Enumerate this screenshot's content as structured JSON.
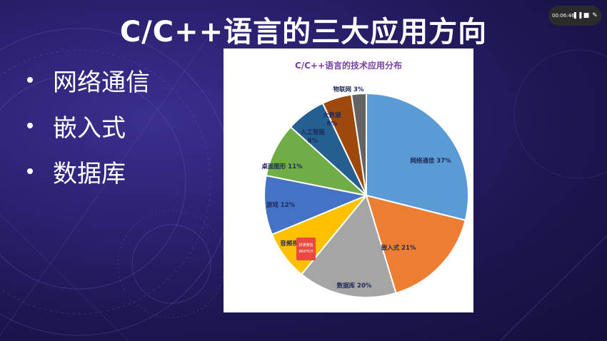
{
  "slide": {
    "title": "C/C++语言的三大应用方向",
    "bullets": [
      "网络通信",
      "嵌入式",
      "数据库"
    ]
  },
  "recorder": {
    "time": "00:06:46",
    "icons": [
      "pause-icon",
      "stop-icon",
      "pen-icon"
    ]
  },
  "watermark": {
    "line1": "拼课微信",
    "line2": "BRXTCH"
  },
  "colors": {
    "title": "#ffffff",
    "chart_title": "#7a3fa6",
    "label": "#1f2a5a"
  },
  "chart_data": {
    "type": "pie",
    "title": "C/C++语言的技术应用分布",
    "categories": [
      "网络通信",
      "嵌入式",
      "数据库",
      "音频视频",
      "游戏",
      "桌面图形",
      "人工智能",
      "大数据",
      "物联网"
    ],
    "values": [
      37,
      21,
      20,
      10,
      12,
      11,
      8,
      6,
      3
    ],
    "labels": [
      "网络通信 37%",
      "嵌入式 21%",
      "数据库 20%",
      "音频视",
      "游戏 12%",
      "桌面图形 11%",
      "人工智能|8%",
      "大数据|6%",
      "物联网 3%"
    ],
    "colors": [
      "#5b9bd5",
      "#ed7d31",
      "#a5a5a5",
      "#ffc000",
      "#4472c4",
      "#70ad47",
      "#255e91",
      "#9e480e",
      "#636363"
    ],
    "start_angle_deg": 0,
    "direction": "clockwise",
    "legend": "none"
  }
}
